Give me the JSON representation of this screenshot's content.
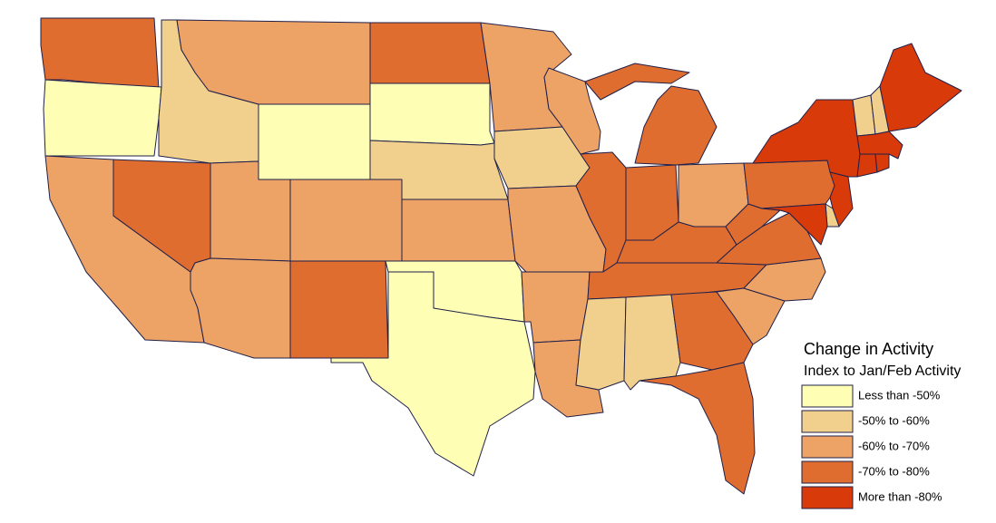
{
  "legend": {
    "title": "Change in Activity",
    "subtitle": "Index to Jan/Feb Activity",
    "items": [
      {
        "label": "Less than -50%",
        "color": "#fefeb4"
      },
      {
        "label": "-50% to -60%",
        "color": "#f0d08c"
      },
      {
        "label": "-60% to -70%",
        "color": "#eda266"
      },
      {
        "label": "-70% to -80%",
        "color": "#df6d30"
      },
      {
        "label": "More than -80%",
        "color": "#d83a0a"
      }
    ]
  },
  "regions": [
    3,
    0,
    2,
    3,
    1,
    2,
    0,
    2,
    2,
    2,
    3,
    3,
    0,
    1,
    2,
    0,
    0,
    2,
    1,
    2,
    2,
    2,
    2,
    3,
    3,
    3,
    2,
    3,
    3,
    1,
    1,
    3,
    3,
    2,
    2,
    3,
    3,
    3,
    4,
    1,
    1,
    4,
    4,
    4,
    4,
    4,
    1,
    4
  ]
}
